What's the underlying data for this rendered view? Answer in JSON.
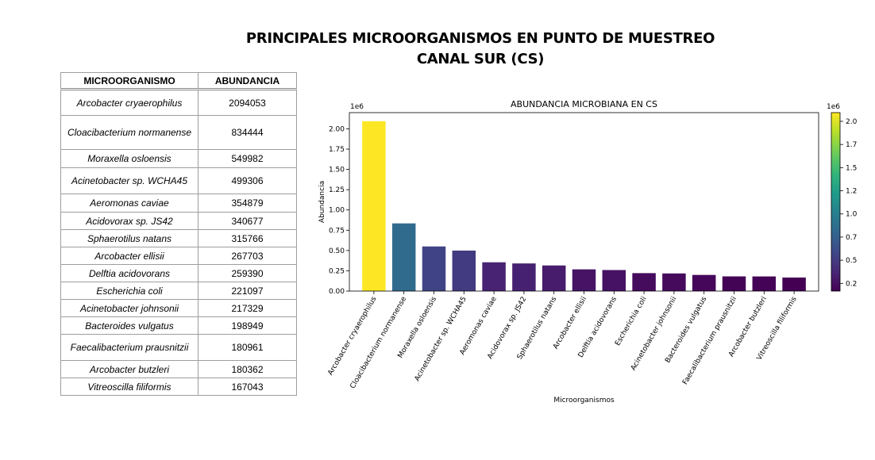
{
  "title_lines": [
    "PRINCIPALES MICROORGANISMOS EN PUNTO DE MUESTREO",
    "CANAL SUR  (CS)"
  ],
  "table": {
    "headers": [
      "MICROORGANISMO",
      "ABUNDANCIA"
    ],
    "rows": [
      {
        "name": "Arcobacter cryaerophilus",
        "value": "2094053"
      },
      {
        "name": "Cloacibacterium normanense",
        "value": "834444"
      },
      {
        "name": "Moraxella osloensis",
        "value": "549982"
      },
      {
        "name": "Acinetobacter sp. WCHA45",
        "value": "499306"
      },
      {
        "name": "Aeromonas caviae",
        "value": "354879"
      },
      {
        "name": "Acidovorax sp. JS42",
        "value": "340677"
      },
      {
        "name": "Sphaerotilus natans",
        "value": "315766"
      },
      {
        "name": "Arcobacter ellisii",
        "value": "267703"
      },
      {
        "name": "Delftia acidovorans",
        "value": "259390"
      },
      {
        "name": "Escherichia coli",
        "value": "221097"
      },
      {
        "name": "Acinetobacter johnsonii",
        "value": "217329"
      },
      {
        "name": "Bacteroides vulgatus",
        "value": "198949"
      },
      {
        "name": "Faecalibacterium prausnitzii",
        "value": "180961"
      },
      {
        "name": "Arcobacter butzleri",
        "value": "180362"
      },
      {
        "name": "Vitreoscilla filiformis",
        "value": "167043"
      }
    ]
  },
  "chart_data": {
    "type": "bar",
    "title": "ABUNDANCIA MICROBIANA EN CS",
    "xlabel": "Microorganismos",
    "ylabel": "Abundancia",
    "y_offset_label": "1e6",
    "ylim": [
      0,
      2200000
    ],
    "yticks": [
      0,
      250000,
      500000,
      750000,
      1000000,
      1250000,
      1500000,
      1750000,
      2000000
    ],
    "ytick_labels": [
      "0.00",
      "0.25",
      "0.50",
      "0.75",
      "1.00",
      "1.25",
      "1.50",
      "1.75",
      "2.00"
    ],
    "categories": [
      "Arcobacter cryaerophilus",
      "Cloacibacterium normanense",
      "Moraxella osloensis",
      "Acinetobacter sp. WCHA45",
      "Aeromonas caviae",
      "Acidovorax sp. JS42",
      "Sphaerotilus natans",
      "Arcobacter ellisii",
      "Delftia acidovorans",
      "Escherichia coli",
      "Acinetobacter johnsonii",
      "Bacteroides vulgatus",
      "Faecalibacterium prausnitzii",
      "Arcobacter butzleri",
      "Vitreoscilla filiformis"
    ],
    "values": [
      2094053,
      834444,
      549982,
      499306,
      354879,
      340677,
      315766,
      267703,
      259390,
      221097,
      217329,
      198949,
      180961,
      180362,
      167043
    ],
    "colormap": "viridis",
    "colorbar": {
      "range": [
        167043,
        2094053
      ],
      "offset_label": "1e6",
      "ticks": [
        250000,
        500000,
        750000,
        1000000,
        1250000,
        1500000,
        1750000,
        2000000
      ],
      "tick_labels": [
        "0.25",
        "0.50",
        "0.75",
        "1.00",
        "1.25",
        "1.50",
        "1.75",
        "2.00"
      ]
    },
    "grid": false,
    "legend": "none"
  }
}
